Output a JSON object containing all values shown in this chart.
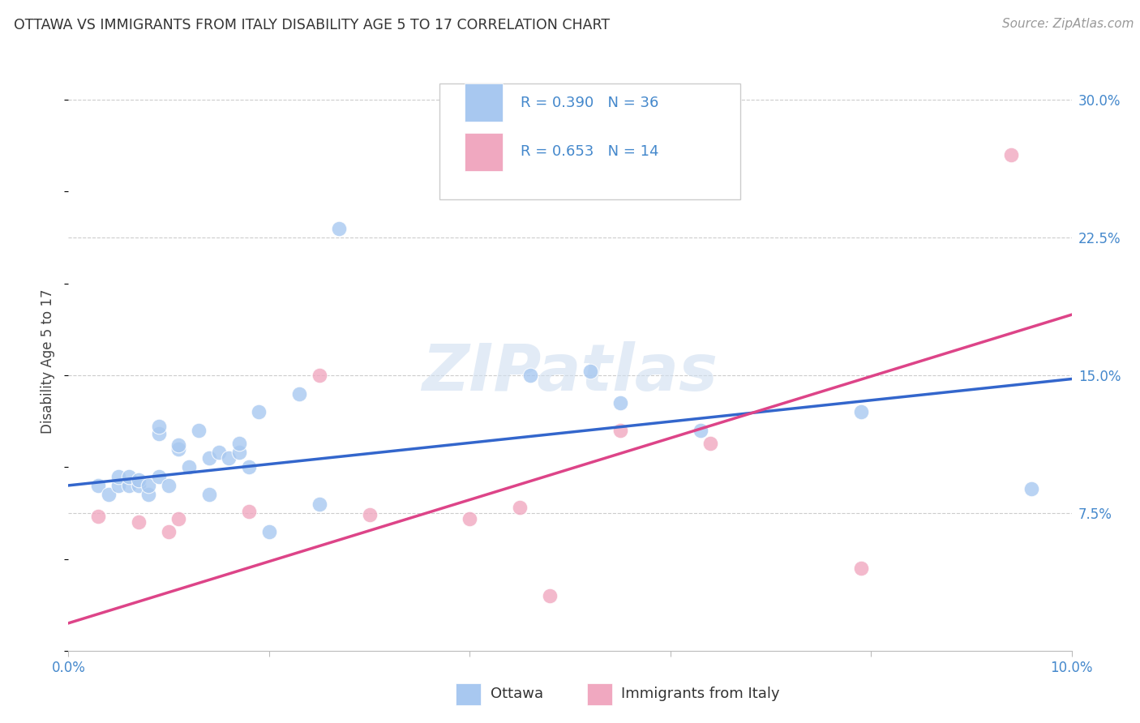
{
  "title": "OTTAWA VS IMMIGRANTS FROM ITALY DISABILITY AGE 5 TO 17 CORRELATION CHART",
  "source": "Source: ZipAtlas.com",
  "ylabel": "Disability Age 5 to 17",
  "xlim": [
    0.0,
    0.1
  ],
  "ylim": [
    0.0,
    0.315
  ],
  "background_color": "#ffffff",
  "grid_color": "#cccccc",
  "watermark": "ZIPatlas",
  "ottawa_color": "#a8c8f0",
  "italy_color": "#f0a8c0",
  "ottawa_line_color": "#3366cc",
  "italy_line_color": "#dd4488",
  "ottawa_R": "0.390",
  "ottawa_N": "36",
  "italy_R": "0.653",
  "italy_N": "14",
  "ottawa_x": [
    0.003,
    0.004,
    0.005,
    0.005,
    0.006,
    0.006,
    0.007,
    0.007,
    0.008,
    0.008,
    0.009,
    0.009,
    0.009,
    0.01,
    0.011,
    0.011,
    0.012,
    0.013,
    0.014,
    0.014,
    0.015,
    0.016,
    0.017,
    0.017,
    0.018,
    0.019,
    0.02,
    0.023,
    0.025,
    0.027,
    0.046,
    0.052,
    0.055,
    0.063,
    0.079,
    0.096
  ],
  "ottawa_y": [
    0.09,
    0.085,
    0.09,
    0.095,
    0.09,
    0.095,
    0.09,
    0.093,
    0.085,
    0.09,
    0.118,
    0.122,
    0.095,
    0.09,
    0.11,
    0.112,
    0.1,
    0.12,
    0.105,
    0.085,
    0.108,
    0.105,
    0.108,
    0.113,
    0.1,
    0.13,
    0.065,
    0.14,
    0.08,
    0.23,
    0.15,
    0.152,
    0.135,
    0.12,
    0.13,
    0.088
  ],
  "italy_x": [
    0.003,
    0.007,
    0.01,
    0.011,
    0.018,
    0.025,
    0.03,
    0.04,
    0.045,
    0.048,
    0.055,
    0.064,
    0.079,
    0.094
  ],
  "italy_y": [
    0.073,
    0.07,
    0.065,
    0.072,
    0.076,
    0.15,
    0.074,
    0.072,
    0.078,
    0.03,
    0.12,
    0.113,
    0.045,
    0.27
  ],
  "ottawa_line_x": [
    0.0,
    0.1
  ],
  "ottawa_line_y": [
    0.09,
    0.148
  ],
  "italy_line_x": [
    0.0,
    0.1
  ],
  "italy_line_y": [
    0.015,
    0.183
  ],
  "ytick_positions": [
    0.075,
    0.15,
    0.225,
    0.3
  ],
  "ytick_labels": [
    "7.5%",
    "15.0%",
    "22.5%",
    "30.0%"
  ],
  "xtick_positions": [
    0.0,
    0.02,
    0.04,
    0.06,
    0.08,
    0.1
  ],
  "xtick_labels": [
    "0.0%",
    "",
    "",
    "",
    "",
    "10.0%"
  ]
}
